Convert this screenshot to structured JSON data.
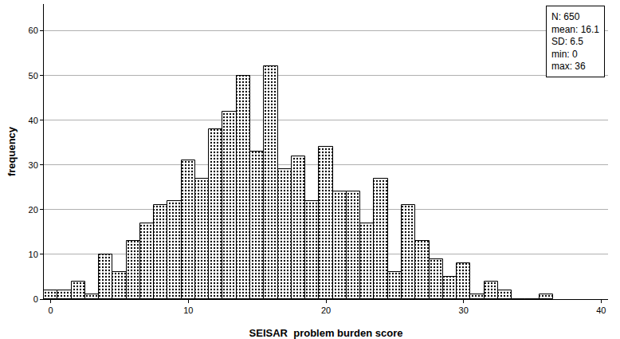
{
  "chart_data": {
    "type": "histogram",
    "x_label": "SEISAR  problem burden score",
    "y_label": "frequency",
    "bins": [
      -0.5,
      0.5,
      1.5,
      2.5,
      3.5,
      4.5,
      5.5,
      6.5,
      7.5,
      8.5,
      9.5,
      10.5,
      11.5,
      12.5,
      13.5,
      14.5,
      15.5,
      16.5,
      17.5,
      18.5,
      19.5,
      20.5,
      21.5,
      22.5,
      23.5,
      24.5,
      25.5,
      26.5,
      27.5,
      28.5,
      29.5,
      30.5,
      31.5,
      32.5,
      33.5,
      34.5,
      35.5,
      36.5
    ],
    "values": [
      2,
      2,
      4,
      1,
      10,
      6,
      13,
      17,
      21,
      22,
      31,
      27,
      38,
      42,
      50,
      33,
      52,
      29,
      32,
      22,
      34,
      24,
      24,
      17,
      27,
      6,
      21,
      13,
      9,
      5,
      8,
      1,
      4,
      2,
      0,
      0,
      1
    ],
    "color": "#ffffff",
    "xlim": [
      -0.5,
      40.5
    ],
    "xticks": [
      0,
      10,
      20,
      30,
      40
    ],
    "ylim": [
      0,
      66
    ],
    "yticks": [
      0,
      10,
      20,
      30,
      40,
      50,
      60
    ],
    "grid": true,
    "annotations": [
      "N: 650",
      "mean: 16.1",
      "SD: 6.5",
      "min: 0",
      "max: 36"
    ]
  }
}
